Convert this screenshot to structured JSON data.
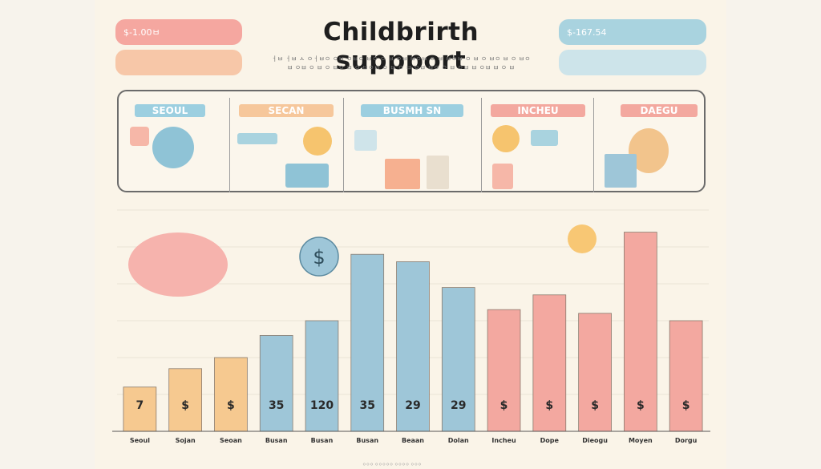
{
  "header": {
    "title": "Childbrirth suppport",
    "subtitle_lines": [
      "ㅓㅂ ㅓㅂ ㅅ ㅇㅓㅂㅇ ㅇㅂ ㅇㅂㅇ ㅂㅇ ㅇ ㅂ ㅇㅂ ㅂㅇㅂ ㅇ ㅂ ㅂㅇㅂ ㅇ ㅂ ㅇ ㅂㅇ ㅂ ㅇ ㅂㅇ",
      "ㅂ ㅇㅂ ㅇ ㅂ ㅇ ㅂㅇ ㅂ ㅇ ㅂㅇㅂ ㅇ ㅂ ㅇ ㅂ ㅇㅂ ㅂㅇ ㅇ ㅂ ㅇㅂ ㅂ ㅇㅂ ㅂ ㅇ ㅂ"
    ],
    "pill_top_left": "$-1.00ㅂ",
    "pill_top_right": "$-167.54"
  },
  "city_panels": [
    {
      "label": "SEOUL",
      "color": "#9ccfe0"
    },
    {
      "label": "SECAN",
      "color": "#f6c79b"
    },
    {
      "label": "BUSMH SN",
      "color": "#9ccfe0"
    },
    {
      "label": "INCHEU",
      "color": "#f3a89f"
    },
    {
      "label": "DAEGU",
      "color": "#f3a89f"
    }
  ],
  "chart_data": {
    "type": "bar",
    "title": "Childbrirth suppport",
    "xlabel": "",
    "ylabel": "",
    "ylim": [
      0,
      300
    ],
    "categories": [
      "Seoul",
      "Sojan",
      "Seoan",
      "Busan",
      "Busan",
      "Busan",
      "Beaan",
      "Dolan",
      "Incheu",
      "Dope",
      "Dieogu",
      "Moyen",
      "Dorgu"
    ],
    "values": [
      60,
      85,
      100,
      130,
      150,
      240,
      230,
      195,
      165,
      185,
      160,
      270,
      150
    ],
    "bar_colors": [
      "#f6c990",
      "#f6c990",
      "#f6c990",
      "#9ec6d8",
      "#9ec6d8",
      "#9ec6d8",
      "#9ec6d8",
      "#9ec6d8",
      "#f3a8a0",
      "#f3a8a0",
      "#f3a8a0",
      "#f3a8a0",
      "#f3a8a0"
    ],
    "data_labels": [
      "7",
      "$",
      "$",
      "35",
      "120",
      "35",
      "29",
      "29",
      "$",
      "$",
      "$",
      "$",
      "$"
    ],
    "grid": true
  },
  "footer_text": "ㅇㅇㅇ ㅇㅇㅇㅇㅇ ㅇㅇㅇㅇ ㅇㅇㅇ"
}
